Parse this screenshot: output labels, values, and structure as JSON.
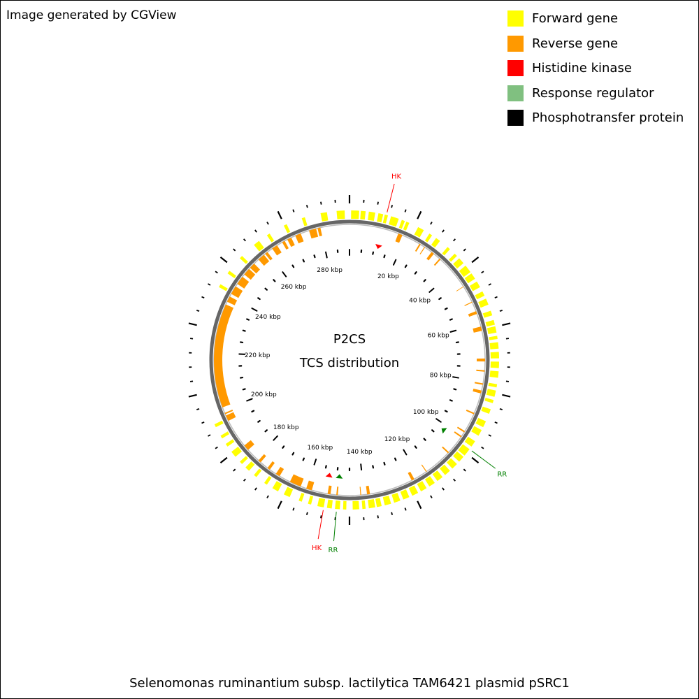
{
  "credit": "Image generated by CGView",
  "legend": [
    {
      "label": "Forward gene",
      "color": "#FFFF00"
    },
    {
      "label": "Reverse gene",
      "color": "#FF9900"
    },
    {
      "label": "Histidine kinase",
      "color": "#FF0000"
    },
    {
      "label": "Response regulator",
      "color": "#80C080"
    },
    {
      "label": "Phosphotransfer protein",
      "color": "#000000"
    }
  ],
  "center_title": "P2CS",
  "center_subtitle": "TCS distribution",
  "footer": "Selenomonas ruminantium subsp. lactilytica TAM6421 plasmid pSRC1",
  "genome": {
    "length_kbp": 290,
    "tick_labels": [
      "20 kbp",
      "40 kbp",
      "60 kbp",
      "80 kbp",
      "100 kbp",
      "120 kbp",
      "140 kbp",
      "160 kbp",
      "180 kbp",
      "200 kbp",
      "220 kbp",
      "240 kbp",
      "260 kbp",
      "280 kbp"
    ],
    "tick_positions_kbp": [
      20,
      40,
      60,
      80,
      100,
      120,
      140,
      160,
      180,
      200,
      220,
      240,
      260,
      280
    ],
    "forward_genes_kbp": [
      [
        0.5,
        3.0
      ],
      [
        3.5,
        5.0
      ],
      [
        6.0,
        8.0
      ],
      [
        9.0,
        10.5
      ],
      [
        11.0,
        12.0
      ],
      [
        13.0,
        15.5
      ],
      [
        16.5,
        17.5
      ],
      [
        18.0,
        19.0
      ],
      [
        22.0,
        24.0
      ],
      [
        26.0,
        27.0
      ],
      [
        28.5,
        30.0
      ],
      [
        33.0,
        34.0
      ],
      [
        36.0,
        37.0
      ],
      [
        38.0,
        40.0
      ],
      [
        41.0,
        43.5
      ],
      [
        44.0,
        46.0
      ],
      [
        47.0,
        49.0
      ],
      [
        50.5,
        52.0
      ],
      [
        53.0,
        55.0
      ],
      [
        57.0,
        58.5
      ],
      [
        60.0,
        61.5
      ],
      [
        62.0,
        64.0
      ],
      [
        65.0,
        66.0
      ],
      [
        67.0,
        69.0
      ],
      [
        70.0,
        72.0
      ],
      [
        73.0,
        75.0
      ],
      [
        76.0,
        78.0
      ],
      [
        80.0,
        81.0
      ],
      [
        82.0,
        84.0
      ],
      [
        85.0,
        86.0
      ],
      [
        88.0,
        89.5
      ],
      [
        92.0,
        94.0
      ],
      [
        95.0,
        97.0
      ],
      [
        99.0,
        101.0
      ],
      [
        102.0,
        104.5
      ],
      [
        105.0,
        107.0
      ],
      [
        108.0,
        110.0
      ],
      [
        111.0,
        113.0
      ],
      [
        114.0,
        116.0
      ],
      [
        117.0,
        119.0
      ],
      [
        120.0,
        122.0
      ],
      [
        123.0,
        125.0
      ],
      [
        126.0,
        128.0
      ],
      [
        129.0,
        131.0
      ],
      [
        132.0,
        134.0
      ],
      [
        135.0,
        136.5
      ],
      [
        137.0,
        139.0
      ],
      [
        140.0,
        141.0
      ],
      [
        142.0,
        144.0
      ],
      [
        146.0,
        147.0
      ],
      [
        148.0,
        149.5
      ],
      [
        150.5,
        152.0
      ],
      [
        153.0,
        155.0
      ],
      [
        157.0,
        158.0
      ],
      [
        160.0,
        161.0
      ],
      [
        164.0,
        166.0
      ],
      [
        168.0,
        170.0
      ],
      [
        172.0,
        173.0
      ],
      [
        176.0,
        177.0
      ],
      [
        179.0,
        180.5
      ],
      [
        182.0,
        183.0
      ],
      [
        185.0,
        187.0
      ],
      [
        189.0,
        190.0
      ],
      [
        192.0,
        193.0
      ],
      [
        196.0,
        197.0
      ],
      [
        241.0,
        242.0
      ],
      [
        246.0,
        247.0
      ],
      [
        252.0,
        253.0
      ],
      [
        258.0,
        260.0
      ],
      [
        263.0,
        264.0
      ],
      [
        269.0,
        270.0
      ],
      [
        275.0,
        276.0
      ],
      [
        281.0,
        283.0
      ],
      [
        286.0,
        288.5
      ]
    ],
    "reverse_genes_kbp": [
      [
        17.0,
        18.5
      ],
      [
        25.0,
        25.5
      ],
      [
        27.0,
        27.3
      ],
      [
        30.0,
        31.0
      ],
      [
        33.5,
        34.0
      ],
      [
        46.0,
        46.2
      ],
      [
        52.0,
        52.3
      ],
      [
        55.5,
        56.5
      ],
      [
        61.0,
        62.5
      ],
      [
        72.0,
        73.0
      ],
      [
        76.0,
        76.5
      ],
      [
        80.5,
        81.0
      ],
      [
        83.0,
        84.0
      ],
      [
        91.0,
        91.5
      ],
      [
        98.0,
        98.5
      ],
      [
        100.0,
        100.5
      ],
      [
        107.0,
        107.5
      ],
      [
        117.0,
        117.3
      ],
      [
        122.0,
        123.0
      ],
      [
        138.0,
        139.0
      ],
      [
        141.0,
        141.3
      ],
      [
        149.0,
        149.5
      ],
      [
        151.5,
        152.5
      ],
      [
        158.0,
        160.0
      ],
      [
        162.0,
        166.0
      ],
      [
        170.0,
        171.5
      ],
      [
        174.0,
        175.0
      ],
      [
        178.0,
        179.0
      ],
      [
        184.0,
        186.0
      ],
      [
        196.0,
        198.0
      ],
      [
        198.5,
        199.0
      ],
      [
        201.0,
        237.0
      ],
      [
        238.0,
        240.0
      ],
      [
        241.0,
        244.0
      ],
      [
        245.0,
        248.0
      ],
      [
        249.0,
        251.5
      ],
      [
        252.0,
        254.0
      ],
      [
        256.0,
        258.5
      ],
      [
        259.0,
        260.0
      ],
      [
        262.0,
        264.0
      ],
      [
        266.0,
        267.0
      ],
      [
        268.0,
        269.5
      ],
      [
        271.0,
        273.0
      ],
      [
        276.0,
        278.5
      ],
      [
        279.0,
        280.0
      ]
    ],
    "markers": [
      {
        "type": "HK",
        "position_kbp": 11.5,
        "color": "#FF0000",
        "label": "HK"
      },
      {
        "type": "RR",
        "position_kbp": 102.0,
        "color": "#008000",
        "label": "RR"
      },
      {
        "type": "HK",
        "position_kbp": 153.0,
        "color": "#FF0000",
        "label": "HK"
      },
      {
        "type": "RR",
        "position_kbp": 149.0,
        "color": "#008000",
        "label": "RR"
      }
    ]
  }
}
